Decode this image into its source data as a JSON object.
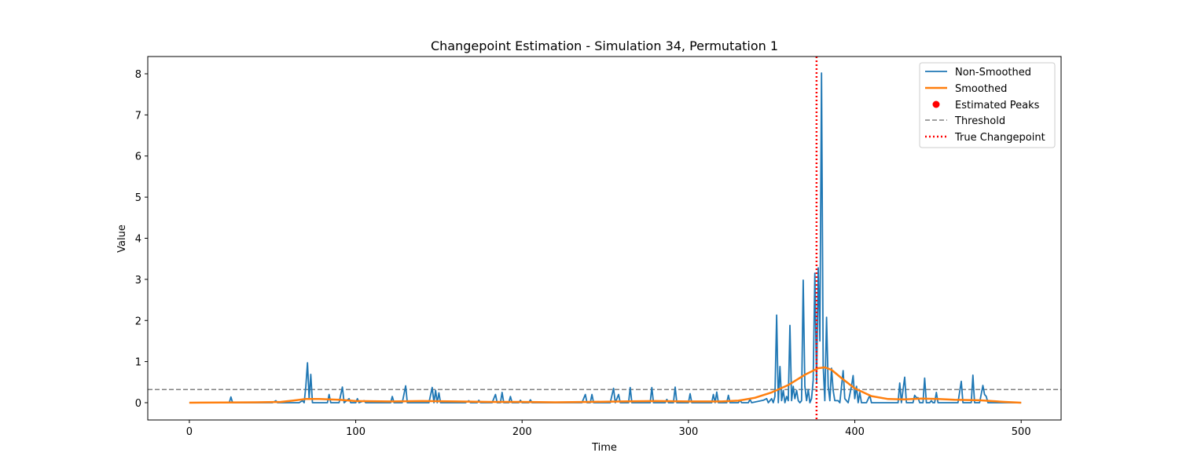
{
  "chart_data": {
    "type": "line",
    "title": "Changepoint Estimation - Simulation 34, Permutation 1",
    "xlabel": "Time",
    "ylabel": "Value",
    "xlim": [
      -25,
      524
    ],
    "ylim": [
      -0.42,
      8.42
    ],
    "xticks": [
      0,
      100,
      200,
      300,
      400,
      500
    ],
    "yticks": [
      0,
      1,
      2,
      3,
      4,
      5,
      6,
      7,
      8
    ],
    "threshold": 0.32,
    "true_changepoint": 377,
    "estimated_peaks": [],
    "legend": {
      "placement": "top-right",
      "entries": [
        "Non-Smoothed",
        "Smoothed",
        "Estimated Peaks",
        "Threshold",
        "True Changepoint"
      ]
    },
    "colors": {
      "non_smoothed": "#1f77b4",
      "smoothed": "#ff7f0e",
      "peaks": "#ff0000",
      "threshold": "#808080",
      "changepoint": "#ff0000"
    },
    "series": [
      {
        "name": "Non-Smoothed",
        "points": [
          [
            0,
            0
          ],
          [
            24,
            0
          ],
          [
            25,
            0.14
          ],
          [
            26,
            0
          ],
          [
            50,
            0
          ],
          [
            52,
            0.05
          ],
          [
            53,
            0
          ],
          [
            66,
            0
          ],
          [
            68,
            0.05
          ],
          [
            69,
            0
          ],
          [
            70,
            0.4
          ],
          [
            71,
            0.97
          ],
          [
            72,
            0.1
          ],
          [
            73,
            0.69
          ],
          [
            74,
            0
          ],
          [
            83,
            0
          ],
          [
            84,
            0.2
          ],
          [
            85,
            0
          ],
          [
            90,
            0
          ],
          [
            92,
            0.38
          ],
          [
            93,
            0
          ],
          [
            96,
            0.1
          ],
          [
            97,
            0
          ],
          [
            100,
            0
          ],
          [
            101,
            0.1
          ],
          [
            102,
            0
          ],
          [
            105,
            0.05
          ],
          [
            106,
            0
          ],
          [
            121,
            0
          ],
          [
            122,
            0.15
          ],
          [
            123,
            0
          ],
          [
            128,
            0
          ],
          [
            130,
            0.41
          ],
          [
            131,
            0
          ],
          [
            144,
            0
          ],
          [
            146,
            0.37
          ],
          [
            147,
            0
          ],
          [
            148,
            0.3
          ],
          [
            149,
            0
          ],
          [
            150,
            0.24
          ],
          [
            151,
            0
          ],
          [
            166,
            0
          ],
          [
            168,
            0.05
          ],
          [
            169,
            0
          ],
          [
            173,
            0
          ],
          [
            174,
            0.06
          ],
          [
            175,
            0
          ],
          [
            182,
            0
          ],
          [
            184,
            0.2
          ],
          [
            185,
            0
          ],
          [
            187,
            0
          ],
          [
            188,
            0.25
          ],
          [
            189,
            0
          ],
          [
            192,
            0
          ],
          [
            193,
            0.15
          ],
          [
            194,
            0
          ],
          [
            198,
            0
          ],
          [
            199,
            0.06
          ],
          [
            200,
            0
          ],
          [
            204,
            0
          ],
          [
            205,
            0.07
          ],
          [
            206,
            0
          ],
          [
            236,
            0
          ],
          [
            238,
            0.2
          ],
          [
            239,
            0
          ],
          [
            241,
            0
          ],
          [
            242,
            0.2
          ],
          [
            243,
            0
          ],
          [
            253,
            0
          ],
          [
            255,
            0.35
          ],
          [
            256,
            0
          ],
          [
            258,
            0.2
          ],
          [
            259,
            0
          ],
          [
            264,
            0
          ],
          [
            265,
            0.37
          ],
          [
            266,
            0
          ],
          [
            277,
            0
          ],
          [
            278,
            0.37
          ],
          [
            279,
            0
          ],
          [
            286,
            0
          ],
          [
            287,
            0.08
          ],
          [
            288,
            0
          ],
          [
            291,
            0
          ],
          [
            292,
            0.38
          ],
          [
            293,
            0
          ],
          [
            300,
            0
          ],
          [
            301,
            0.22
          ],
          [
            302,
            0
          ],
          [
            314,
            0
          ],
          [
            315,
            0.2
          ],
          [
            316,
            0
          ],
          [
            317,
            0.26
          ],
          [
            318,
            0
          ],
          [
            323,
            0
          ],
          [
            324,
            0.18
          ],
          [
            325,
            0
          ],
          [
            330,
            0
          ],
          [
            331,
            0.06
          ],
          [
            332,
            0
          ],
          [
            336,
            0
          ],
          [
            337,
            0.08
          ],
          [
            338,
            0
          ],
          [
            345,
            0.06
          ],
          [
            347,
            0.1
          ],
          [
            348,
            0
          ],
          [
            350,
            0.1
          ],
          [
            351,
            0
          ],
          [
            352,
            0.15
          ],
          [
            353,
            2.13
          ],
          [
            354,
            0
          ],
          [
            355,
            0.88
          ],
          [
            356,
            0.05
          ],
          [
            357,
            0.3
          ],
          [
            358,
            0
          ],
          [
            359,
            0.15
          ],
          [
            360,
            0.05
          ],
          [
            361,
            1.88
          ],
          [
            362,
            0.05
          ],
          [
            363,
            0.4
          ],
          [
            364,
            0.1
          ],
          [
            365,
            0.3
          ],
          [
            366,
            0.05
          ],
          [
            367,
            0
          ],
          [
            368,
            0.05
          ],
          [
            369,
            2.98
          ],
          [
            370,
            0.4
          ],
          [
            371,
            0.05
          ],
          [
            372,
            0.32
          ],
          [
            373,
            0
          ],
          [
            374,
            0.1
          ],
          [
            375,
            0.55
          ],
          [
            376,
            3.15
          ],
          [
            377,
            0.5
          ],
          [
            378,
            3.28
          ],
          [
            379,
            1.5
          ],
          [
            380,
            8.02
          ],
          [
            381,
            0.9
          ],
          [
            382,
            0.05
          ],
          [
            383,
            2.08
          ],
          [
            384,
            0.4
          ],
          [
            385,
            0.05
          ],
          [
            386,
            0.84
          ],
          [
            387,
            0.3
          ],
          [
            388,
            0.05
          ],
          [
            390,
            0.05
          ],
          [
            391,
            0
          ],
          [
            393,
            0.78
          ],
          [
            394,
            0.1
          ],
          [
            396,
            0
          ],
          [
            398,
            0.4
          ],
          [
            399,
            0.66
          ],
          [
            400,
            0.1
          ],
          [
            401,
            0.4
          ],
          [
            402,
            0
          ],
          [
            403,
            0.25
          ],
          [
            404,
            0
          ],
          [
            407,
            0
          ],
          [
            409,
            0.18
          ],
          [
            410,
            0
          ],
          [
            426,
            0
          ],
          [
            427,
            0.48
          ],
          [
            428,
            0
          ],
          [
            430,
            0.62
          ],
          [
            431,
            0
          ],
          [
            435,
            0
          ],
          [
            436,
            0.18
          ],
          [
            437,
            0.12
          ],
          [
            438,
            0.12
          ],
          [
            439,
            0
          ],
          [
            441,
            0
          ],
          [
            442,
            0.6
          ],
          [
            443,
            0
          ],
          [
            445,
            0
          ],
          [
            446,
            0.05
          ],
          [
            447,
            0
          ],
          [
            448,
            0
          ],
          [
            449,
            0.25
          ],
          [
            450,
            0
          ],
          [
            462,
            0
          ],
          [
            464,
            0.52
          ],
          [
            465,
            0
          ],
          [
            470,
            0
          ],
          [
            471,
            0.67
          ],
          [
            472,
            0
          ],
          [
            475,
            0
          ],
          [
            477,
            0.42
          ],
          [
            478,
            0.2
          ],
          [
            479,
            0.15
          ],
          [
            480,
            0
          ],
          [
            500,
            0
          ]
        ]
      },
      {
        "name": "Smoothed",
        "points": [
          [
            0,
            0
          ],
          [
            20,
            0.005
          ],
          [
            40,
            0.01
          ],
          [
            55,
            0.02
          ],
          [
            62,
            0.05
          ],
          [
            70,
            0.09
          ],
          [
            78,
            0.09
          ],
          [
            90,
            0.07
          ],
          [
            100,
            0.04
          ],
          [
            120,
            0.03
          ],
          [
            140,
            0.04
          ],
          [
            160,
            0.03
          ],
          [
            180,
            0.02
          ],
          [
            200,
            0.02
          ],
          [
            220,
            0.01
          ],
          [
            240,
            0.02
          ],
          [
            260,
            0.03
          ],
          [
            280,
            0.04
          ],
          [
            300,
            0.03
          ],
          [
            320,
            0.03
          ],
          [
            330,
            0.05
          ],
          [
            340,
            0.12
          ],
          [
            350,
            0.25
          ],
          [
            360,
            0.43
          ],
          [
            370,
            0.68
          ],
          [
            378,
            0.84
          ],
          [
            382,
            0.86
          ],
          [
            386,
            0.8
          ],
          [
            392,
            0.6
          ],
          [
            400,
            0.35
          ],
          [
            410,
            0.16
          ],
          [
            420,
            0.09
          ],
          [
            430,
            0.08
          ],
          [
            440,
            0.1
          ],
          [
            450,
            0.09
          ],
          [
            460,
            0.07
          ],
          [
            475,
            0.06
          ],
          [
            490,
            0.02
          ],
          [
            500,
            0
          ]
        ]
      }
    ]
  }
}
